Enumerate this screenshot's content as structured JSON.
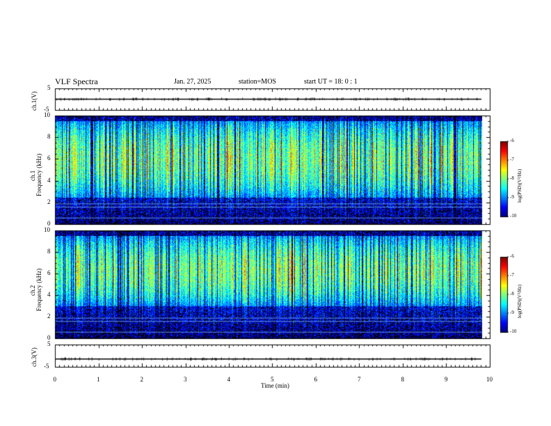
{
  "header": {
    "title": "VLF Spectra",
    "date": "Jan. 27, 2025",
    "station": "station=MOS",
    "start": "start UT =  18: 0  : 1"
  },
  "chart_data": [
    {
      "type": "line",
      "panel": "ch1-voltage",
      "ylabel": "ch.1(V)",
      "ylim": [
        -5,
        5
      ],
      "yticks": [
        "5",
        "-5"
      ],
      "xlim": [
        0,
        10
      ],
      "level": 0
    },
    {
      "type": "heatmap",
      "panel": "ch1-spectrogram",
      "ylabel": "ch.1\nFrequency (kHz)",
      "ylabel_lines": [
        "ch.1",
        "Frequency (kHz)"
      ],
      "ylim": [
        0,
        10
      ],
      "yticks": [
        "0",
        "2",
        "4",
        "6",
        "8",
        "10"
      ],
      "xlim": [
        0,
        9.83
      ],
      "colorbar": {
        "label": "log(PSD)(V²/Hz)",
        "range": [
          -10,
          -6
        ],
        "ticks": [
          "-6",
          "-7",
          "-8",
          "-9",
          "-10"
        ]
      },
      "emission_band_khz": [
        2.5,
        9.5
      ],
      "peak_khz": 6
    },
    {
      "type": "heatmap",
      "panel": "ch2-spectrogram",
      "ylabel": "ch.2\nFrequency (kHz)",
      "ylabel_lines": [
        "ch.2",
        "Frequency (kHz)"
      ],
      "ylim": [
        0,
        10
      ],
      "yticks": [
        "0",
        "2",
        "4",
        "6",
        "8",
        "10"
      ],
      "xlim": [
        0,
        9.83
      ],
      "colorbar": {
        "label": "log(PSD)(V²/Hz)",
        "range": [
          -10,
          -6
        ],
        "ticks": [
          "-6",
          "-7",
          "-8",
          "-9",
          "-10"
        ]
      },
      "emission_band_khz": [
        3,
        9.5
      ],
      "peak_khz": 6.3
    },
    {
      "type": "line",
      "panel": "ch3-voltage",
      "ylabel": "ch.3(V)",
      "ylim": [
        -5,
        5
      ],
      "yticks": [
        "5",
        "-5"
      ],
      "xlim": [
        0,
        10
      ],
      "level": -1.5
    }
  ],
  "xaxis": {
    "label": "Time (min)",
    "ticks": [
      "0",
      "1",
      "2",
      "3",
      "4",
      "5",
      "6",
      "7",
      "8",
      "9",
      "10"
    ],
    "range": [
      0,
      10
    ]
  }
}
